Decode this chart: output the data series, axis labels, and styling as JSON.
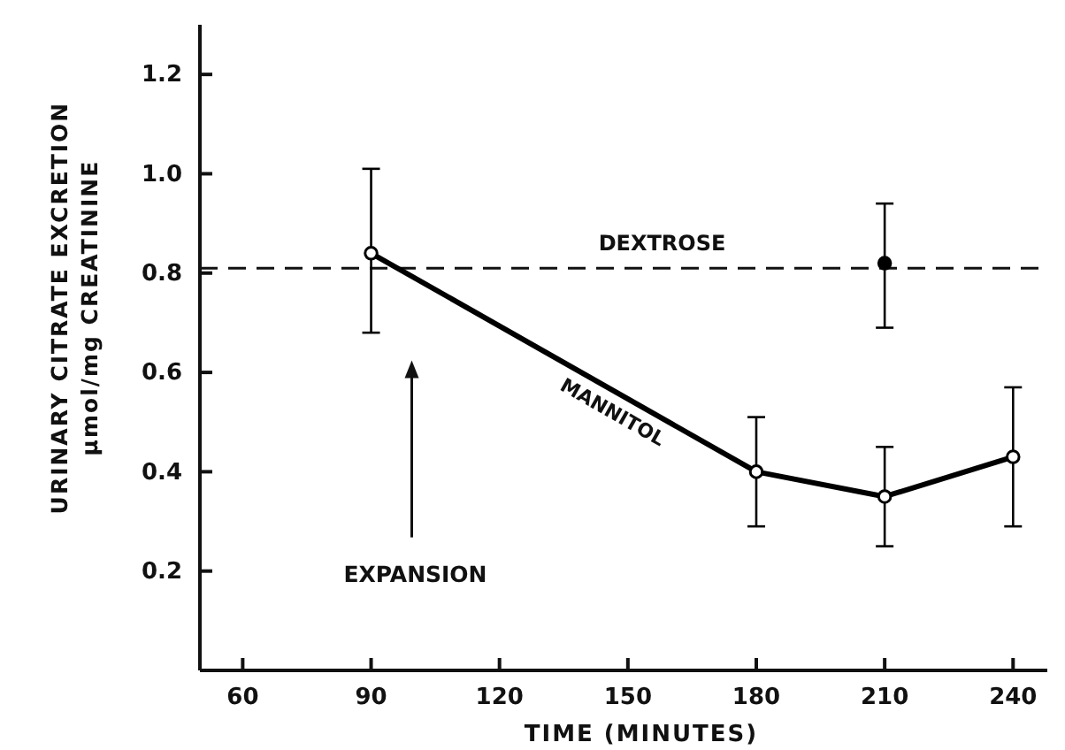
{
  "chart_data": {
    "type": "line",
    "xlabel": "TIME (MINUTES)",
    "ylabel": "URINARY CITRATE EXCRETION\nμmol/mg CREATININE",
    "x": [
      90,
      180,
      210,
      240
    ],
    "series": [
      {
        "name": "MANNITOL",
        "color": "#000000",
        "values": [
          0.84,
          0.4,
          0.35,
          0.43
        ],
        "errors": [
          [
            0.68,
            1.01
          ],
          [
            0.29,
            0.51
          ],
          [
            0.25,
            0.45
          ],
          [
            0.29,
            0.57
          ]
        ],
        "marker": "circle"
      },
      {
        "type": "scatter",
        "x": [
          210
        ],
        "color": "#000000",
        "values": [
          0.82
        ],
        "errors": [
          [
            0.69,
            0.94
          ]
        ],
        "marker": "circle"
      }
    ],
    "ref_lines": [
      {
        "axis": "y",
        "value": 0.81,
        "label": "DEXTROSE",
        "line_style": "dashed"
      }
    ],
    "annotations": [
      "EXPANSION"
    ],
    "xlim": [
      50,
      248
    ],
    "ylim": [
      0,
      1.3
    ],
    "xticks": [
      60,
      90,
      120,
      150,
      180,
      210,
      240
    ],
    "yticks": [
      0.2,
      0.4,
      0.6,
      0.8,
      {
        "value": 1.0,
        "label": "1.0"
      },
      1.2
    ],
    "grid": false
  }
}
